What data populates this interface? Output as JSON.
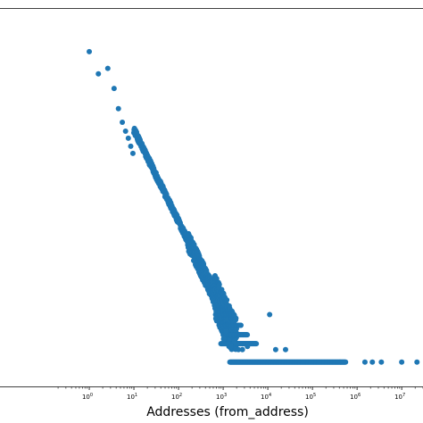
{
  "chart_data": {
    "type": "scatter",
    "xlabel": "Addresses (from_address)",
    "x_scale": "log",
    "y_scale": "log",
    "xlim": [
      0.01,
      30000000
    ],
    "ylim": [
      0.2,
      300000
    ],
    "x_ticks": [
      {
        "value": 1,
        "base": "10",
        "exp": "0"
      },
      {
        "value": 10,
        "base": "10",
        "exp": "1"
      },
      {
        "value": 100,
        "base": "10",
        "exp": "2"
      },
      {
        "value": 1000,
        "base": "10",
        "exp": "3"
      },
      {
        "value": 10000,
        "base": "10",
        "exp": "4"
      },
      {
        "value": 100000,
        "base": "10",
        "exp": "5"
      },
      {
        "value": 1000000,
        "base": "10",
        "exp": "6"
      },
      {
        "value": 10000000,
        "base": "10",
        "exp": "7"
      }
    ],
    "marker_color": "#1f77b4",
    "series": [
      {
        "points": [
          [
            1,
            60000
          ],
          [
            1.6,
            26000
          ],
          [
            2.6,
            32000
          ],
          [
            3.6,
            15000
          ],
          [
            4.5,
            7000
          ],
          [
            5.5,
            4200
          ],
          [
            6.5,
            3000
          ],
          [
            7.5,
            2300
          ],
          [
            8.5,
            1700
          ],
          [
            9.5,
            1300
          ],
          [
            1020,
            1.2
          ],
          [
            1150,
            1.6
          ],
          [
            1300,
            1.0
          ],
          [
            1500,
            0.9
          ],
          [
            1800,
            1.1
          ],
          [
            2200,
            0.8
          ],
          [
            2700,
            0.8
          ],
          [
            3500,
            0.9
          ],
          [
            11000,
            3.0
          ],
          [
            15000,
            0.8
          ],
          [
            25000,
            0.8
          ]
        ],
        "tail_points": [
          [
            1500000,
            0.5
          ],
          [
            2200000,
            0.5
          ],
          [
            3500000,
            0.5
          ],
          [
            10000000,
            0.5
          ],
          [
            22000000,
            0.5
          ]
        ]
      }
    ]
  }
}
